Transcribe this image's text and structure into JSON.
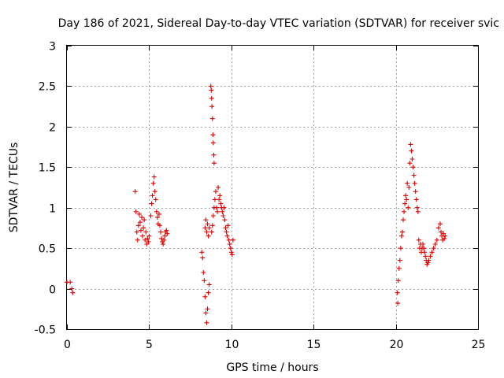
{
  "chart_data": {
    "type": "scatter",
    "title": "Day 186 of 2021, Sidereal Day-to-day VTEC variation (SDTVAR) for receiver svic",
    "xlabel": "GPS time / hours",
    "ylabel": "SDTVAR / TECUs",
    "xlim": [
      0,
      25
    ],
    "ylim": [
      -0.5,
      3
    ],
    "xticks": [
      0,
      5,
      10,
      15,
      20,
      25
    ],
    "xtick_labels": [
      "0",
      "5",
      "10",
      "15",
      "20",
      "25"
    ],
    "yticks": [
      -0.5,
      0,
      0.5,
      1,
      1.5,
      2,
      2.5,
      3
    ],
    "ytick_labels": [
      "-0.5",
      "0",
      "0.5",
      "1",
      "1.5",
      "2",
      "2.5",
      "3"
    ],
    "grid": true,
    "marker": "+",
    "color": "#e00000",
    "series": [
      {
        "name": "SDTVAR",
        "points": [
          [
            0.0,
            0.08
          ],
          [
            0.2,
            0.08
          ],
          [
            0.3,
            0.0
          ],
          [
            0.35,
            -0.05
          ],
          [
            4.15,
            1.2
          ],
          [
            4.2,
            0.95
          ],
          [
            4.25,
            0.7
          ],
          [
            4.3,
            0.6
          ],
          [
            4.35,
            0.78
          ],
          [
            4.4,
            0.92
          ],
          [
            4.45,
            0.82
          ],
          [
            4.5,
            0.72
          ],
          [
            4.55,
            0.88
          ],
          [
            4.6,
            0.65
          ],
          [
            4.65,
            0.75
          ],
          [
            4.7,
            0.85
          ],
          [
            4.75,
            0.6
          ],
          [
            4.8,
            0.7
          ],
          [
            4.85,
            0.55
          ],
          [
            4.9,
            0.62
          ],
          [
            4.95,
            0.58
          ],
          [
            5.0,
            0.65
          ],
          [
            5.1,
            0.9
          ],
          [
            5.15,
            1.05
          ],
          [
            5.2,
            1.15
          ],
          [
            5.25,
            1.3
          ],
          [
            5.3,
            1.38
          ],
          [
            5.35,
            1.2
          ],
          [
            5.4,
            1.1
          ],
          [
            5.45,
            0.95
          ],
          [
            5.5,
            0.88
          ],
          [
            5.55,
            0.8
          ],
          [
            5.6,
            0.92
          ],
          [
            5.65,
            0.78
          ],
          [
            5.7,
            0.7
          ],
          [
            5.75,
            0.62
          ],
          [
            5.8,
            0.58
          ],
          [
            5.85,
            0.55
          ],
          [
            5.9,
            0.6
          ],
          [
            5.95,
            0.65
          ],
          [
            6.0,
            0.7
          ],
          [
            6.05,
            0.72
          ],
          [
            6.1,
            0.68
          ],
          [
            8.2,
            0.45
          ],
          [
            8.25,
            0.38
          ],
          [
            8.3,
            0.2
          ],
          [
            8.35,
            0.1
          ],
          [
            8.4,
            -0.1
          ],
          [
            8.45,
            -0.3
          ],
          [
            8.5,
            -0.42
          ],
          [
            8.55,
            -0.25
          ],
          [
            8.6,
            -0.05
          ],
          [
            8.65,
            0.05
          ],
          [
            8.4,
            0.75
          ],
          [
            8.45,
            0.85
          ],
          [
            8.5,
            0.7
          ],
          [
            8.55,
            0.8
          ],
          [
            8.6,
            0.65
          ],
          [
            8.65,
            0.75
          ],
          [
            8.75,
            2.5
          ],
          [
            8.78,
            2.45
          ],
          [
            8.8,
            2.35
          ],
          [
            8.82,
            2.25
          ],
          [
            8.85,
            2.1
          ],
          [
            8.88,
            1.9
          ],
          [
            8.9,
            1.8
          ],
          [
            8.93,
            1.65
          ],
          [
            8.95,
            1.55
          ],
          [
            8.8,
            0.7
          ],
          [
            8.85,
            0.78
          ],
          [
            8.9,
            0.9
          ],
          [
            8.95,
            1.0
          ],
          [
            9.0,
            1.1
          ],
          [
            9.05,
            1.2
          ],
          [
            9.1,
            1.0
          ],
          [
            9.15,
            0.95
          ],
          [
            9.2,
            1.25
          ],
          [
            9.25,
            1.1
          ],
          [
            9.3,
            1.15
          ],
          [
            9.35,
            1.05
          ],
          [
            9.4,
            1.0
          ],
          [
            9.45,
            0.95
          ],
          [
            9.5,
            0.9
          ],
          [
            9.55,
            1.0
          ],
          [
            9.6,
            0.85
          ],
          [
            9.65,
            0.75
          ],
          [
            9.7,
            0.7
          ],
          [
            9.75,
            0.65
          ],
          [
            9.8,
            0.78
          ],
          [
            9.85,
            0.6
          ],
          [
            9.9,
            0.55
          ],
          [
            9.95,
            0.5
          ],
          [
            10.0,
            0.45
          ],
          [
            10.05,
            0.42
          ],
          [
            10.1,
            0.6
          ],
          [
            20.1,
            -0.05
          ],
          [
            20.12,
            -0.18
          ],
          [
            20.15,
            0.1
          ],
          [
            20.2,
            0.25
          ],
          [
            20.25,
            0.35
          ],
          [
            20.3,
            0.5
          ],
          [
            20.35,
            0.65
          ],
          [
            20.4,
            0.7
          ],
          [
            20.45,
            0.85
          ],
          [
            20.5,
            0.95
          ],
          [
            20.55,
            1.05
          ],
          [
            20.6,
            1.15
          ],
          [
            20.65,
            1.1
          ],
          [
            20.7,
            1.3
          ],
          [
            20.75,
            1.0
          ],
          [
            20.8,
            1.25
          ],
          [
            20.85,
            1.55
          ],
          [
            20.9,
            1.78
          ],
          [
            20.95,
            1.7
          ],
          [
            21.0,
            1.6
          ],
          [
            21.05,
            1.5
          ],
          [
            21.1,
            1.4
          ],
          [
            21.15,
            1.3
          ],
          [
            21.2,
            1.2
          ],
          [
            21.25,
            1.1
          ],
          [
            21.3,
            1.0
          ],
          [
            21.35,
            0.95
          ],
          [
            21.4,
            0.6
          ],
          [
            21.45,
            0.5
          ],
          [
            21.5,
            0.55
          ],
          [
            21.55,
            0.45
          ],
          [
            21.6,
            0.5
          ],
          [
            21.65,
            0.55
          ],
          [
            21.7,
            0.5
          ],
          [
            21.75,
            0.45
          ],
          [
            21.8,
            0.4
          ],
          [
            21.85,
            0.35
          ],
          [
            21.9,
            0.3
          ],
          [
            21.95,
            0.32
          ],
          [
            22.0,
            0.35
          ],
          [
            22.1,
            0.4
          ],
          [
            22.2,
            0.45
          ],
          [
            22.3,
            0.5
          ],
          [
            22.4,
            0.55
          ],
          [
            22.5,
            0.6
          ],
          [
            22.6,
            0.75
          ],
          [
            22.7,
            0.8
          ],
          [
            22.75,
            0.7
          ],
          [
            22.8,
            0.65
          ],
          [
            22.85,
            0.6
          ],
          [
            22.9,
            0.68
          ],
          [
            22.95,
            0.62
          ],
          [
            23.0,
            0.65
          ]
        ]
      }
    ]
  }
}
